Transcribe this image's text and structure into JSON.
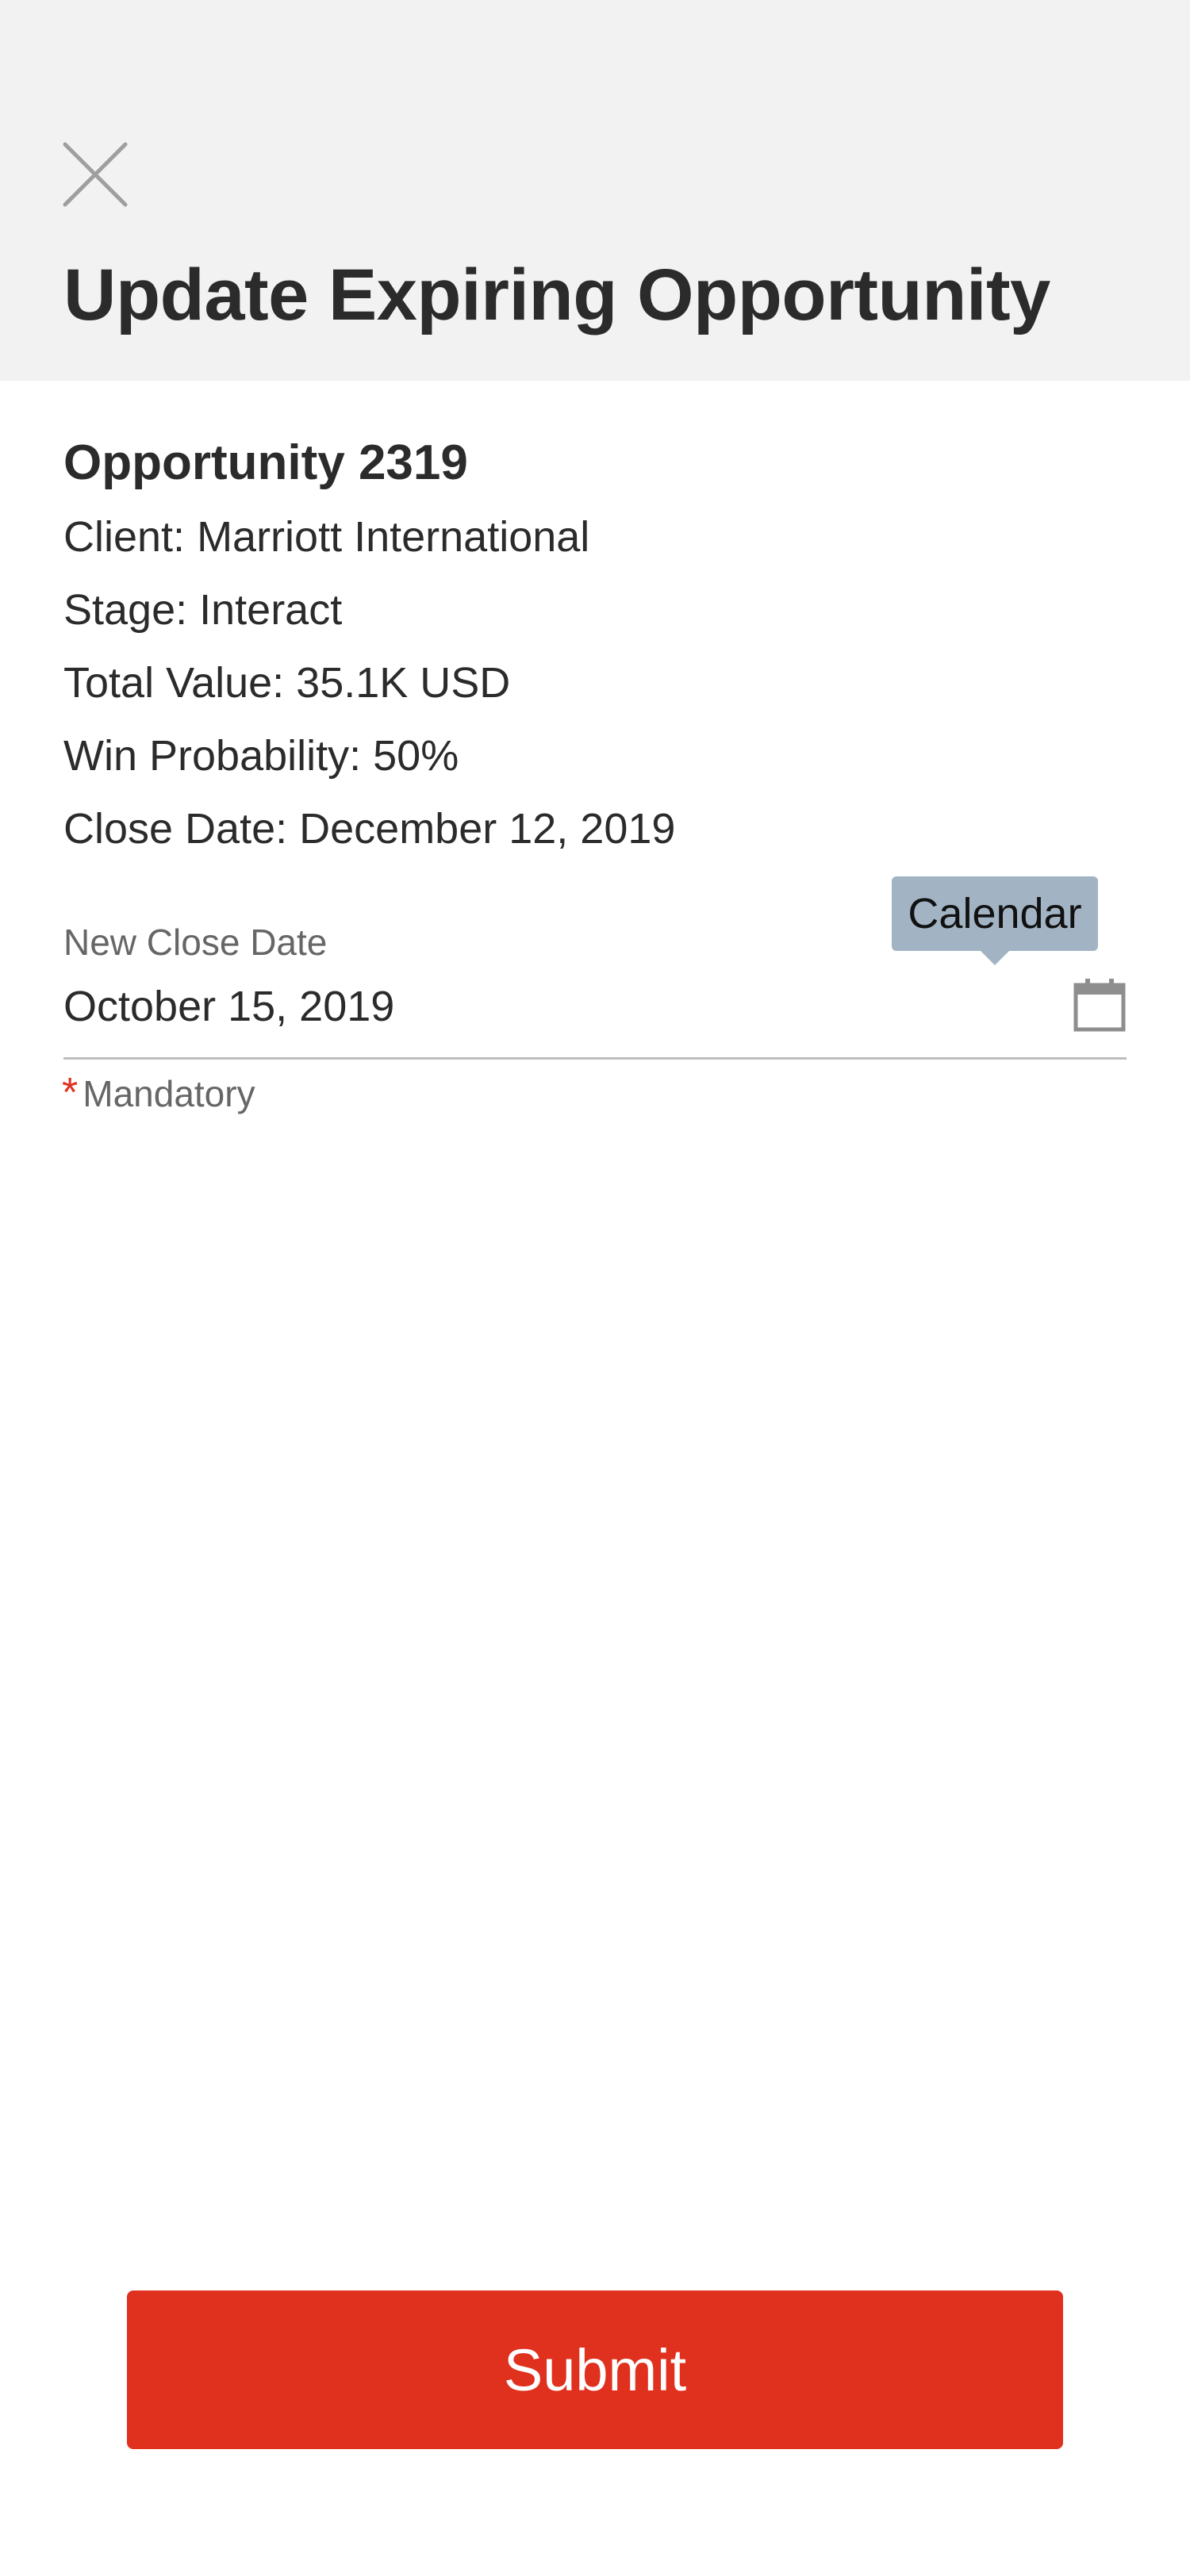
{
  "header": {
    "title": "Update Expiring Opportunity",
    "close_icon": "close-icon"
  },
  "opportunity": {
    "title": "Opportunity 2319",
    "client": "Client: Marriott International",
    "stage": "Stage: Interact",
    "total_value": "Total Value: 35.1K USD",
    "win_probability": "Win Probability: 50%",
    "close_date": "Close Date: December 12, 2019"
  },
  "new_close_date": {
    "label": "New Close Date",
    "value": "October 15, 2019",
    "calendar_icon": "calendar-icon",
    "tooltip": "Calendar"
  },
  "mandatory": {
    "asterisk": "*",
    "text": "Mandatory"
  },
  "submit": {
    "label": "Submit"
  },
  "colors": {
    "header_background": "#f2f2f2",
    "accent": "#e0301e",
    "tooltip_background": "#a2b4c4"
  }
}
